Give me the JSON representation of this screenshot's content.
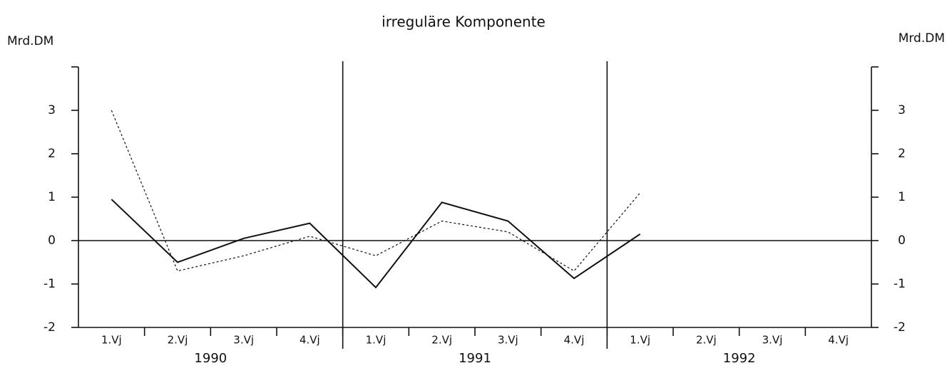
{
  "chart_data": {
    "type": "line",
    "title": "irreguläre Komponente",
    "y_label": "Mrd.DM",
    "y2_label": "Mrd.DM",
    "categories": [
      "1.Vj",
      "2.Vj",
      "3.Vj",
      "4.Vj",
      "1.Vj",
      "2.Vj",
      "3.Vj",
      "4.Vj",
      "1.Vj",
      "2.Vj",
      "3.Vj",
      "4.Vj"
    ],
    "groups": [
      "1990",
      "1991",
      "1992"
    ],
    "series": [
      {
        "color": "#111111",
        "style": "solid",
        "values": [
          0.95,
          -0.5,
          0.05,
          0.4,
          -1.08,
          0.88,
          0.45,
          -0.87,
          0.15,
          null,
          null,
          null
        ]
      },
      {
        "color": "#111111",
        "style": "dotted",
        "values": [
          3.0,
          -0.7,
          -0.35,
          0.1,
          -0.35,
          0.45,
          0.2,
          -0.7,
          1.1,
          null,
          null,
          null
        ]
      }
    ],
    "ylim": [
      -2,
      4
    ],
    "yticks": [
      -2,
      -1,
      0,
      1,
      2,
      3
    ],
    "y2lim": [
      -2,
      4
    ],
    "y2ticks": [
      -2,
      -1,
      0,
      1,
      2,
      3
    ]
  }
}
